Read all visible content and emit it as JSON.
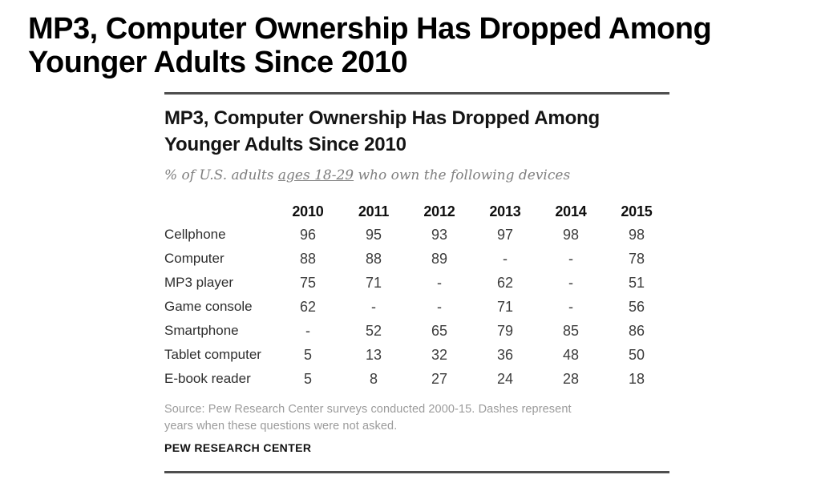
{
  "page_title": {
    "line1": "MP3, Computer Ownership Has Dropped Among",
    "line2": "Younger Adults Since 2010"
  },
  "card": {
    "title_line1": "MP3, Computer Ownership Has Dropped Among",
    "title_line2": "Younger Adults Since 2010",
    "subtitle_prefix": "% of U.S. adults ",
    "subtitle_underlined": "ages 18-29",
    "subtitle_suffix": " who own the following devices",
    "source_line1": "Source: Pew Research Center surveys conducted 2000-15. Dashes represent",
    "source_line2": "years when these questions were not asked.",
    "footer": "PEW RESEARCH CENTER"
  },
  "chart_data": {
    "type": "table",
    "title": "MP3, Computer Ownership Has Dropped Among Younger Adults Since 2010",
    "subtitle": "% of U.S. adults ages 18-29 who own the following devices",
    "unit": "percent of U.S. adults ages 18-29",
    "columns": [
      "2010",
      "2011",
      "2012",
      "2013",
      "2014",
      "2015"
    ],
    "rows": [
      {
        "label": "Cellphone",
        "values": [
          "96",
          "95",
          "93",
          "97",
          "98",
          "98"
        ]
      },
      {
        "label": "Computer",
        "values": [
          "88",
          "88",
          "89",
          "-",
          "-",
          "78"
        ]
      },
      {
        "label": "MP3 player",
        "values": [
          "75",
          "71",
          "-",
          "62",
          "-",
          "51"
        ]
      },
      {
        "label": "Game console",
        "values": [
          "62",
          "-",
          "-",
          "71",
          "-",
          "56"
        ]
      },
      {
        "label": "Smartphone",
        "values": [
          "-",
          "52",
          "65",
          "79",
          "85",
          "86"
        ]
      },
      {
        "label": "Tablet computer",
        "values": [
          "5",
          "13",
          "32",
          "36",
          "48",
          "50"
        ]
      },
      {
        "label": "E-book reader",
        "values": [
          "5",
          "8",
          "27",
          "24",
          "28",
          "18"
        ]
      }
    ],
    "notes": "Dashes represent years when these questions were not asked.",
    "source": "Pew Research Center surveys conducted 2000-15"
  },
  "colors": {
    "headline_black": "#000000",
    "rule_gray": "#4e4e4e",
    "subtitle_gray": "#7f7f7f",
    "value_gray": "#3c3c3c",
    "source_gray": "#9b9b9b"
  }
}
